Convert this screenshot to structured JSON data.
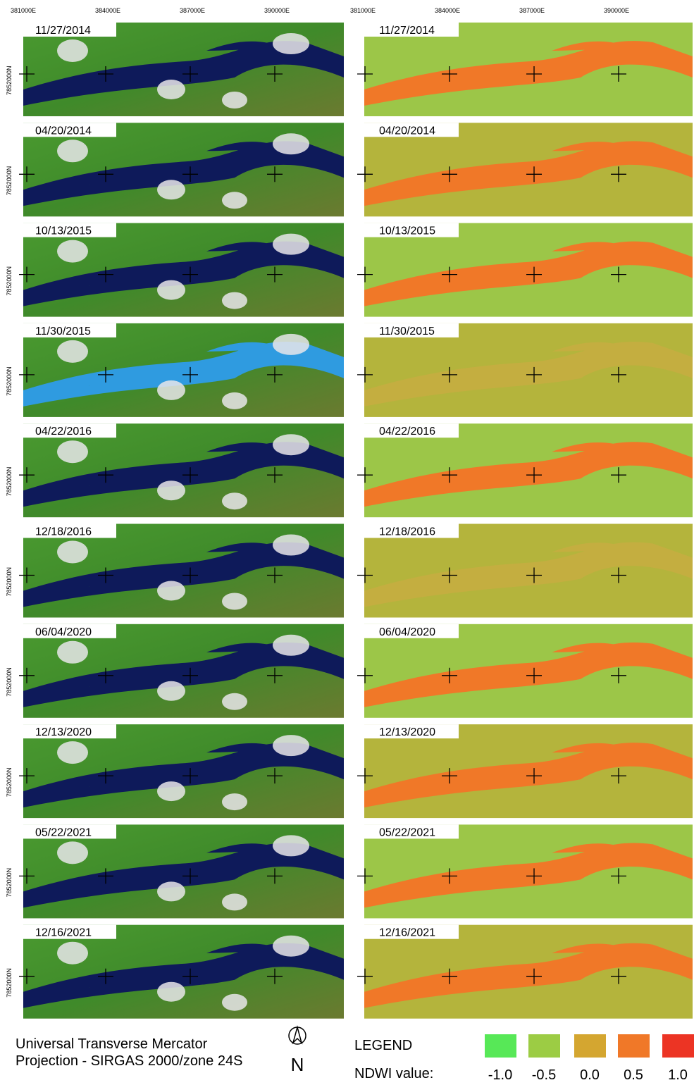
{
  "eastings": [
    "381000E",
    "384000E",
    "387000E",
    "390000E"
  ],
  "northing": "7852000N",
  "dates": [
    "11/27/2014",
    "04/20/2014",
    "10/13/2015",
    "11/30/2015",
    "04/22/2016",
    "12/18/2016",
    "06/04/2020",
    "12/13/2020",
    "05/22/2021",
    "12/16/2021"
  ],
  "projection": [
    "Universal Transverse Mercator",
    "Projection - SIRGAS 2000/zone 24S"
  ],
  "north": "N",
  "legend": {
    "title": "LEGEND",
    "label": "NDWI value:",
    "items": [
      {
        "value": -1,
        "label": "-1.0",
        "color": "#57e857"
      },
      {
        "value": -0.5,
        "label": "-0.5",
        "color": "#9ccc44"
      },
      {
        "value": 0,
        "label": "0.0",
        "color": "#d4a630"
      },
      {
        "value": 0.5,
        "label": "0.5",
        "color": "#f07828"
      },
      {
        "value": 1,
        "label": "1.0",
        "color": "#ec3424"
      }
    ]
  }
}
